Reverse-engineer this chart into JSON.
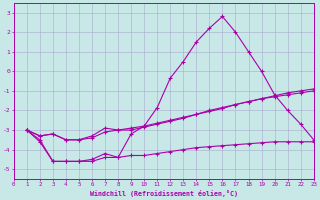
{
  "xlabel": "Windchill (Refroidissement éolien,°C)",
  "background_color": "#c8e8e8",
  "grid_color": "#aaaacc",
  "line_color": "#aa00aa",
  "xlim": [
    0,
    23
  ],
  "ylim": [
    -5.5,
    3.5
  ],
  "xticks": [
    0,
    1,
    2,
    3,
    4,
    5,
    6,
    7,
    8,
    9,
    10,
    11,
    12,
    13,
    14,
    15,
    16,
    17,
    18,
    19,
    20,
    21,
    22,
    23
  ],
  "yticks": [
    -5,
    -4,
    -3,
    -2,
    -1,
    0,
    1,
    2,
    3
  ],
  "line1_x": [
    1,
    2,
    3,
    4,
    5,
    6,
    7,
    8,
    9,
    10,
    11,
    12,
    13,
    14,
    15,
    16,
    17,
    18,
    19,
    20,
    21,
    22,
    23
  ],
  "line1_y": [
    -3.0,
    -3.6,
    -4.6,
    -4.6,
    -4.6,
    -4.6,
    -4.4,
    -4.4,
    -4.3,
    -4.3,
    -4.2,
    -4.1,
    -4.0,
    -3.9,
    -3.85,
    -3.8,
    -3.75,
    -3.7,
    -3.65,
    -3.6,
    -3.6,
    -3.6,
    -3.6
  ],
  "line2_x": [
    1,
    2,
    3,
    4,
    5,
    6,
    7,
    8,
    9,
    10,
    11,
    12,
    13,
    14,
    15,
    16,
    17,
    18,
    19,
    20,
    21,
    22,
    23
  ],
  "line2_y": [
    -3.0,
    -3.3,
    -3.2,
    -3.5,
    -3.5,
    -3.4,
    -3.1,
    -3.0,
    -3.0,
    -2.85,
    -2.7,
    -2.55,
    -2.4,
    -2.2,
    -2.05,
    -1.9,
    -1.7,
    -1.55,
    -1.4,
    -1.25,
    -1.1,
    -1.0,
    -0.9
  ],
  "line3_x": [
    1,
    2,
    3,
    4,
    5,
    6,
    7,
    8,
    9,
    10,
    11,
    12,
    13,
    14,
    15,
    16,
    17,
    18,
    19,
    20,
    21,
    22,
    23
  ],
  "line3_y": [
    -3.0,
    -3.5,
    -4.6,
    -4.6,
    -4.6,
    -4.5,
    -4.2,
    -4.4,
    -3.2,
    -2.8,
    -1.85,
    -0.35,
    0.5,
    1.5,
    2.2,
    2.8,
    2.0,
    1.0,
    0.0,
    -1.2,
    -2.0,
    -2.7,
    -3.5
  ],
  "line4_x": [
    1,
    2,
    3,
    4,
    5,
    6,
    7,
    8,
    9,
    10,
    11,
    12,
    13,
    14,
    15,
    16,
    17,
    18,
    19,
    20,
    21,
    22,
    23
  ],
  "line4_y": [
    -3.0,
    -3.3,
    -3.2,
    -3.5,
    -3.5,
    -3.3,
    -2.9,
    -3.0,
    -2.9,
    -2.8,
    -2.65,
    -2.5,
    -2.35,
    -2.2,
    -2.0,
    -1.85,
    -1.7,
    -1.55,
    -1.4,
    -1.3,
    -1.2,
    -1.1,
    -1.0
  ]
}
